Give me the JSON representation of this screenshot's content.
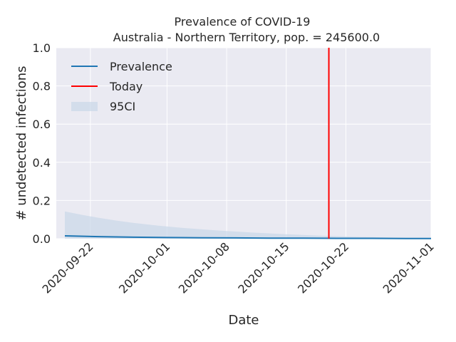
{
  "chart_data": {
    "type": "line",
    "title": "Prevalence of COVID-19",
    "subtitle": "Australia - Northern Territory, pop. = 245600.0",
    "xlabel": "Date",
    "ylabel": "# undetected infections",
    "xlim": [
      "2020-09-18",
      "2020-11-01"
    ],
    "ylim": [
      0,
      1.0
    ],
    "x_ticks": [
      "2020-09-22",
      "2020-10-01",
      "2020-10-08",
      "2020-10-15",
      "2020-10-22",
      "2020-11-01"
    ],
    "y_ticks": [
      "0.0",
      "0.2",
      "0.4",
      "0.6",
      "0.8",
      "1.0"
    ],
    "grid": true,
    "legend_position": "top-left",
    "series": [
      {
        "name": "Prevalence",
        "color": "#1f77b4",
        "x": [
          "2020-09-19",
          "2020-09-23",
          "2020-09-27",
          "2020-10-01",
          "2020-10-05",
          "2020-10-09",
          "2020-10-13",
          "2020-10-17",
          "2020-10-21",
          "2020-10-25",
          "2020-10-29",
          "2020-11-01"
        ],
        "y": [
          0.015,
          0.011,
          0.008,
          0.006,
          0.005,
          0.004,
          0.003,
          0.003,
          0.002,
          0.002,
          0.001,
          0.001
        ]
      }
    ],
    "ci": {
      "name": "95CI",
      "color": "#c9d7e8",
      "x": [
        "2020-09-19",
        "2020-09-21",
        "2020-09-23",
        "2020-09-25",
        "2020-09-27",
        "2020-09-30",
        "2020-10-03",
        "2020-10-07",
        "2020-10-11",
        "2020-10-15",
        "2020-10-19",
        "2020-10-23",
        "2020-10-27",
        "2020-11-01"
      ],
      "upper": [
        0.143,
        0.125,
        0.109,
        0.095,
        0.083,
        0.068,
        0.056,
        0.043,
        0.032,
        0.023,
        0.016,
        0.01,
        0.006,
        0.002
      ],
      "lower": [
        0.0,
        0.0,
        0.0,
        0.0,
        0.0,
        0.0,
        0.0,
        0.0,
        0.0,
        0.0,
        0.0,
        0.0,
        0.0,
        0.0
      ]
    },
    "markers": [
      {
        "name": "Today",
        "x": "2020-10-20",
        "color": "#ff0000"
      }
    ]
  }
}
